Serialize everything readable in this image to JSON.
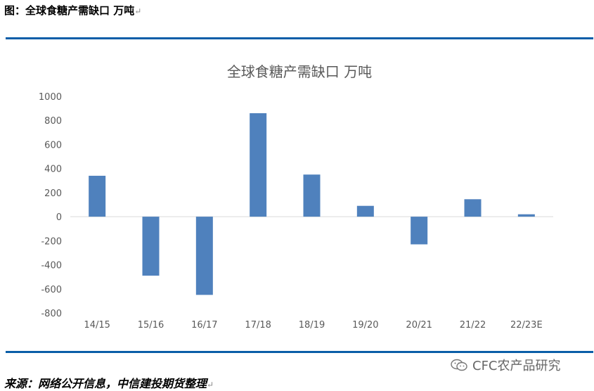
{
  "figure": {
    "label": "图：全球食糖产需缺口 万吨",
    "return_mark": "↵"
  },
  "source": {
    "text": "来源：网络公开信息，中信建投期货整理",
    "return_mark": "↵"
  },
  "watermark": {
    "text": "CFC农产品研究",
    "icon": "wechat-icon"
  },
  "chart_data": {
    "type": "bar",
    "title": "全球食糖产需缺口 万吨",
    "categories": [
      "14/15",
      "15/16",
      "16/17",
      "17/18",
      "18/19",
      "19/20",
      "20/21",
      "21/22",
      "22/23E"
    ],
    "values": [
      340,
      -490,
      -650,
      860,
      350,
      90,
      -230,
      145,
      20
    ],
    "yticks": [
      "1000",
      "800",
      "600",
      "400",
      "200",
      "0",
      "-200",
      "-400",
      "-600",
      "-800"
    ],
    "ylim": [
      -800,
      1000
    ],
    "bar_color": "#4f81bd",
    "axis_color": "#d9d9d9",
    "grid": false,
    "legend": "none"
  }
}
